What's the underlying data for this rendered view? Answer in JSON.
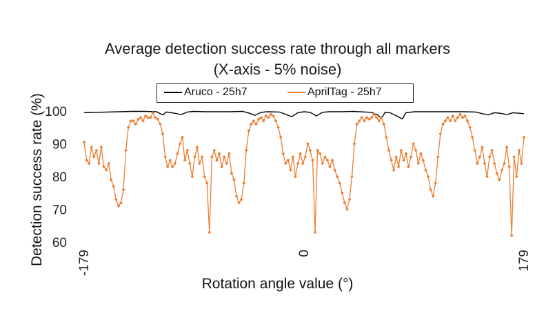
{
  "chart_data": {
    "type": "line",
    "title": "Average detection success rate through all markers",
    "subtitle": "(X-axis - 5% noise)",
    "xlabel": "Rotation angle value (°)",
    "ylabel": "Detection success rate (%)",
    "x_tick_labels": [
      "-179",
      "0",
      "179"
    ],
    "y_tick_labels": [
      "60",
      "70",
      "80",
      "90",
      "100"
    ],
    "xlim": [
      -179,
      179
    ],
    "ylim": [
      60,
      100
    ],
    "grid": false,
    "legend_position": "top",
    "series": [
      {
        "name": "Aruco - 25h7",
        "color": "#000000",
        "marker": "none",
        "points": [
          [
            -179,
            99.5
          ],
          [
            -170,
            99.6
          ],
          [
            -160,
            99.7
          ],
          [
            -150,
            99.8
          ],
          [
            -140,
            99.9
          ],
          [
            -130,
            99.9
          ],
          [
            -120,
            99.8
          ],
          [
            -115,
            98.8
          ],
          [
            -112,
            99.7
          ],
          [
            -105,
            99.3
          ],
          [
            -100,
            98.9
          ],
          [
            -95,
            99.7
          ],
          [
            -90,
            99.9
          ],
          [
            -80,
            99.8
          ],
          [
            -70,
            99.8
          ],
          [
            -60,
            99.8
          ],
          [
            -50,
            99.9
          ],
          [
            -45,
            99.4
          ],
          [
            -40,
            98.7
          ],
          [
            -35,
            99.6
          ],
          [
            -30,
            99.8
          ],
          [
            -20,
            99.7
          ],
          [
            -15,
            99.0
          ],
          [
            -10,
            98.3
          ],
          [
            -5,
            99.5
          ],
          [
            0,
            99.8
          ],
          [
            5,
            99.6
          ],
          [
            10,
            98.5
          ],
          [
            15,
            99.6
          ],
          [
            20,
            99.8
          ],
          [
            30,
            99.8
          ],
          [
            40,
            99.9
          ],
          [
            50,
            99.7
          ],
          [
            55,
            99.6
          ],
          [
            60,
            98.8
          ],
          [
            63,
            97.8
          ],
          [
            66,
            99.6
          ],
          [
            70,
            99.5
          ],
          [
            75,
            98.6
          ],
          [
            80,
            97.6
          ],
          [
            83,
            99.5
          ],
          [
            90,
            99.8
          ],
          [
            100,
            99.8
          ],
          [
            110,
            99.8
          ],
          [
            120,
            99.8
          ],
          [
            130,
            99.8
          ],
          [
            140,
            99.7
          ],
          [
            145,
            99.2
          ],
          [
            150,
            98.8
          ],
          [
            155,
            99.5
          ],
          [
            160,
            99.3
          ],
          [
            165,
            98.9
          ],
          [
            170,
            99.5
          ],
          [
            179,
            99.2
          ]
        ]
      },
      {
        "name": "AprilTag - 25h7",
        "color": "#ED7D31",
        "marker": "diamond",
        "points": [
          [
            -179,
            90.5
          ],
          [
            -177,
            85
          ],
          [
            -175,
            84
          ],
          [
            -173,
            89
          ],
          [
            -171,
            86
          ],
          [
            -169,
            88
          ],
          [
            -167,
            84
          ],
          [
            -165,
            89
          ],
          [
            -163,
            83
          ],
          [
            -161,
            82
          ],
          [
            -159,
            84
          ],
          [
            -157,
            79
          ],
          [
            -155,
            77
          ],
          [
            -153,
            73
          ],
          [
            -151,
            71
          ],
          [
            -149,
            72
          ],
          [
            -147,
            76
          ],
          [
            -145,
            88
          ],
          [
            -143,
            95
          ],
          [
            -141,
            97
          ],
          [
            -139,
            97
          ],
          [
            -137,
            96
          ],
          [
            -135,
            97.5
          ],
          [
            -133,
            98
          ],
          [
            -131,
            97
          ],
          [
            -129,
            98.5
          ],
          [
            -127,
            98
          ],
          [
            -125,
            98
          ],
          [
            -123,
            99.5
          ],
          [
            -121,
            98
          ],
          [
            -119,
            97.5
          ],
          [
            -117,
            96
          ],
          [
            -115,
            93
          ],
          [
            -113,
            86
          ],
          [
            -111,
            83
          ],
          [
            -109,
            85
          ],
          [
            -107,
            83
          ],
          [
            -105,
            84
          ],
          [
            -103,
            87
          ],
          [
            -101,
            90
          ],
          [
            -99,
            92
          ],
          [
            -97,
            85
          ],
          [
            -95,
            88
          ],
          [
            -93,
            84
          ],
          [
            -91,
            80
          ],
          [
            -89,
            86
          ],
          [
            -87,
            89
          ],
          [
            -85,
            84
          ],
          [
            -83,
            86
          ],
          [
            -81,
            80
          ],
          [
            -79,
            78
          ],
          [
            -77,
            63
          ],
          [
            -75,
            86
          ],
          [
            -73,
            88
          ],
          [
            -71,
            85
          ],
          [
            -69,
            87
          ],
          [
            -67,
            83
          ],
          [
            -65,
            86
          ],
          [
            -63,
            84
          ],
          [
            -61,
            87
          ],
          [
            -59,
            81
          ],
          [
            -57,
            79
          ],
          [
            -55,
            74
          ],
          [
            -53,
            72
          ],
          [
            -51,
            73
          ],
          [
            -49,
            78
          ],
          [
            -47,
            88
          ],
          [
            -45,
            94
          ],
          [
            -43,
            96
          ],
          [
            -41,
            97
          ],
          [
            -39,
            96
          ],
          [
            -37,
            97.5
          ],
          [
            -35,
            98
          ],
          [
            -33,
            97
          ],
          [
            -31,
            98.5
          ],
          [
            -29,
            98
          ],
          [
            -27,
            99
          ],
          [
            -25,
            98.5
          ],
          [
            -23,
            97
          ],
          [
            -21,
            95
          ],
          [
            -19,
            92
          ],
          [
            -17,
            87
          ],
          [
            -15,
            84
          ],
          [
            -13,
            85
          ],
          [
            -11,
            82
          ],
          [
            -9,
            86
          ],
          [
            -7,
            80
          ],
          [
            -5,
            84
          ],
          [
            -3,
            87
          ],
          [
            -1,
            84
          ],
          [
            1,
            86
          ],
          [
            3,
            90
          ],
          [
            5,
            88
          ],
          [
            7,
            85
          ],
          [
            9,
            63
          ],
          [
            11,
            88
          ],
          [
            13,
            87
          ],
          [
            15,
            84
          ],
          [
            17,
            86
          ],
          [
            19,
            85
          ],
          [
            21,
            83
          ],
          [
            23,
            85
          ],
          [
            25,
            82
          ],
          [
            27,
            80
          ],
          [
            29,
            78
          ],
          [
            31,
            75
          ],
          [
            33,
            72
          ],
          [
            35,
            70
          ],
          [
            37,
            73
          ],
          [
            39,
            80
          ],
          [
            41,
            90
          ],
          [
            43,
            96
          ],
          [
            45,
            97
          ],
          [
            47,
            98
          ],
          [
            49,
            97
          ],
          [
            51,
            98
          ],
          [
            53,
            97.5
          ],
          [
            55,
            98
          ],
          [
            57,
            99
          ],
          [
            59,
            98
          ],
          [
            61,
            97
          ],
          [
            63,
            98
          ],
          [
            65,
            96
          ],
          [
            67,
            92
          ],
          [
            69,
            88
          ],
          [
            71,
            85
          ],
          [
            73,
            82
          ],
          [
            75,
            86
          ],
          [
            77,
            83
          ],
          [
            79,
            88
          ],
          [
            81,
            85
          ],
          [
            83,
            87
          ],
          [
            85,
            83
          ],
          [
            87,
            86
          ],
          [
            89,
            90
          ],
          [
            91,
            88
          ],
          [
            93,
            84
          ],
          [
            95,
            87
          ],
          [
            97,
            85
          ],
          [
            99,
            82
          ],
          [
            101,
            80
          ],
          [
            103,
            76
          ],
          [
            105,
            74
          ],
          [
            107,
            78
          ],
          [
            109,
            86
          ],
          [
            111,
            93
          ],
          [
            113,
            96
          ],
          [
            115,
            97
          ],
          [
            117,
            98
          ],
          [
            119,
            97
          ],
          [
            121,
            98.5
          ],
          [
            123,
            97
          ],
          [
            125,
            98
          ],
          [
            127,
            99
          ],
          [
            129,
            98
          ],
          [
            131,
            98.5
          ],
          [
            133,
            97
          ],
          [
            135,
            95
          ],
          [
            137,
            92
          ],
          [
            139,
            88
          ],
          [
            141,
            84
          ],
          [
            143,
            86
          ],
          [
            145,
            89
          ],
          [
            147,
            84
          ],
          [
            149,
            80
          ],
          [
            151,
            86
          ],
          [
            153,
            88
          ],
          [
            155,
            84
          ],
          [
            157,
            81
          ],
          [
            159,
            79
          ],
          [
            161,
            82
          ],
          [
            163,
            84
          ],
          [
            165,
            89
          ],
          [
            167,
            83
          ],
          [
            169,
            62
          ],
          [
            171,
            86
          ],
          [
            173,
            80
          ],
          [
            175,
            88
          ],
          [
            177,
            84
          ],
          [
            179,
            92
          ]
        ]
      }
    ]
  }
}
